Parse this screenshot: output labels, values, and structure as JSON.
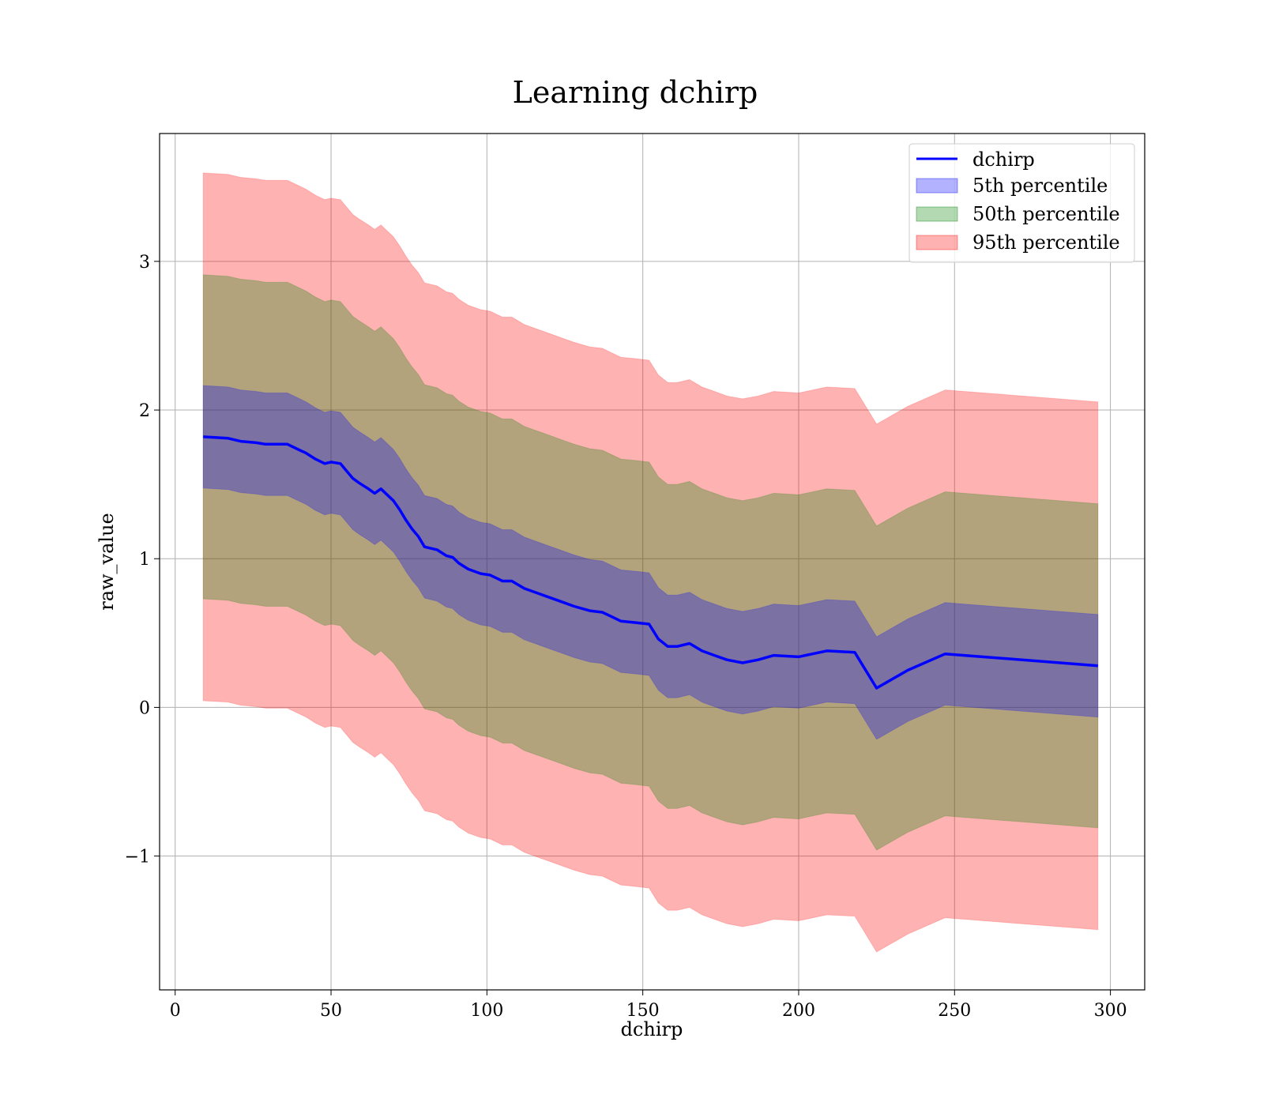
{
  "chart_data": {
    "type": "line",
    "title": "Learning dchirp",
    "xlabel": "dchirp",
    "ylabel": "raw_value",
    "xlim": [
      -5,
      311
    ],
    "ylim": [
      -1.9,
      3.86
    ],
    "grid": true,
    "legend_position": "top-right",
    "xticks": [
      0,
      50,
      100,
      150,
      200,
      250,
      300
    ],
    "xtick_labels": [
      "0",
      "50",
      "100",
      "150",
      "200",
      "250",
      "300"
    ],
    "yticks": [
      -1,
      0,
      1,
      2,
      3
    ],
    "ytick_labels": [
      "−1",
      "0",
      "1",
      "2",
      "3"
    ],
    "x": [
      9,
      17,
      21,
      26,
      29,
      32,
      36,
      39,
      42,
      45,
      48,
      50,
      53,
      55,
      57,
      59,
      62,
      64,
      66,
      68,
      70,
      72,
      74,
      76,
      78,
      80,
      82,
      84,
      87,
      89,
      91,
      94,
      98,
      101,
      103,
      105,
      108,
      112,
      116,
      120,
      124,
      128,
      133,
      137,
      140,
      143,
      148,
      152,
      155,
      158,
      161,
      165,
      169,
      173,
      177,
      182,
      187,
      192,
      200,
      209,
      218,
      225,
      235,
      247,
      296
    ],
    "series": [
      {
        "name": "dchirp",
        "color": "#0000ff",
        "values": [
          1.82,
          1.81,
          1.79,
          1.78,
          1.77,
          1.77,
          1.77,
          1.74,
          1.71,
          1.67,
          1.64,
          1.65,
          1.64,
          1.59,
          1.54,
          1.51,
          1.47,
          1.44,
          1.47,
          1.43,
          1.39,
          1.33,
          1.26,
          1.2,
          1.15,
          1.08,
          1.07,
          1.06,
          1.02,
          1.01,
          0.97,
          0.93,
          0.9,
          0.89,
          0.87,
          0.85,
          0.85,
          0.8,
          0.77,
          0.74,
          0.71,
          0.68,
          0.65,
          0.64,
          0.61,
          0.58,
          0.57,
          0.56,
          0.46,
          0.41,
          0.41,
          0.43,
          0.38,
          0.35,
          0.32,
          0.3,
          0.32,
          0.35,
          0.34,
          0.38,
          0.37,
          0.13,
          0.25,
          0.36,
          0.28
        ]
      }
    ],
    "bands": [
      {
        "name": "5th percentile",
        "color": "#0000ff",
        "opacity": 0.3,
        "width": 0.345
      },
      {
        "name": "50th percentile",
        "color": "#008000",
        "opacity": 0.3,
        "width": 1.09
      },
      {
        "name": "95th percentile",
        "color": "#ff0000",
        "opacity": 0.3,
        "width": 1.775
      }
    ]
  }
}
